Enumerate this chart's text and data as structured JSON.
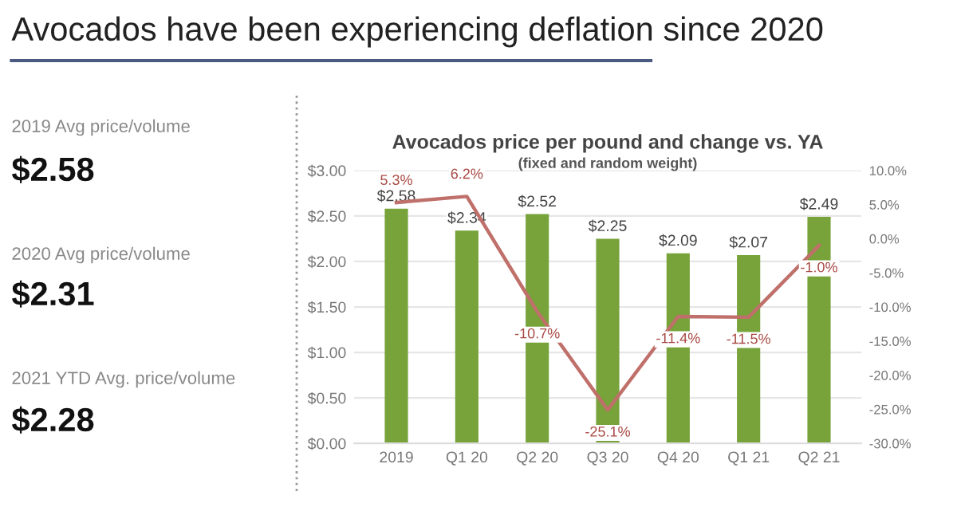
{
  "chart_data": [
    {
      "type": "other",
      "title": "Avocados have been experiencing deflation since 2020",
      "annotations": [
        "2019 Avg price/volume",
        "$2.58",
        "2020 Avg price/volume",
        "$2.31",
        "2021 YTD Avg. price/volume",
        "$2.28"
      ]
    },
    {
      "type": "bar",
      "title": "Avocados price per pound and change vs. YA",
      "subtitle": "(fixed and random weight)",
      "categories": [
        "2019",
        "Q1 20",
        "Q2 20",
        "Q3 20",
        "Q4 20",
        "Q1 21",
        "Q2 21"
      ],
      "series": [
        {
          "type": "bar",
          "color": "#77a33a",
          "values": [
            2.58,
            2.34,
            2.52,
            2.25,
            2.09,
            2.07,
            2.49
          ],
          "value_labels": [
            "$2.58",
            "$2.34",
            "$2.52",
            "$2.25",
            "$2.09",
            "$2.07",
            "$2.49"
          ]
        },
        {
          "type": "line",
          "axis": "y2",
          "color": "#c0706a",
          "values": [
            5.3,
            6.2,
            -10.7,
            -25.1,
            -11.4,
            -11.5,
            -1.0
          ],
          "value_labels": [
            "5.3%",
            "6.2%",
            "-10.7%",
            "-25.1%",
            "-11.4%",
            "-11.5%",
            "-1.0%"
          ]
        }
      ],
      "ylim": [
        0,
        3
      ],
      "yticks": [
        {
          "value": 0,
          "label": "$0.00"
        },
        {
          "value": 0.5,
          "label": "$0.50"
        },
        {
          "value": 1,
          "label": "$1.00"
        },
        {
          "value": 1.5,
          "label": "$1.50"
        },
        {
          "value": 2,
          "label": "$2.00"
        },
        {
          "value": 2.5,
          "label": "$2.50"
        },
        {
          "value": 3,
          "label": "$3.00"
        }
      ],
      "y2lim": [
        -30,
        10
      ],
      "y2ticks": [
        {
          "value": -30,
          "label": "-30.0%"
        },
        {
          "value": -25,
          "label": "-25.0%"
        },
        {
          "value": -20,
          "label": "-20.0%"
        },
        {
          "value": -15,
          "label": "-15.0%"
        },
        {
          "value": -10,
          "label": "-10.0%"
        },
        {
          "value": -5,
          "label": "-5.0%"
        },
        {
          "value": 0,
          "label": "0.0%"
        },
        {
          "value": 5,
          "label": "5.0%"
        },
        {
          "value": 10,
          "label": "10.0%"
        }
      ],
      "grid": "y",
      "marker": "none",
      "line_style": "solid"
    }
  ]
}
